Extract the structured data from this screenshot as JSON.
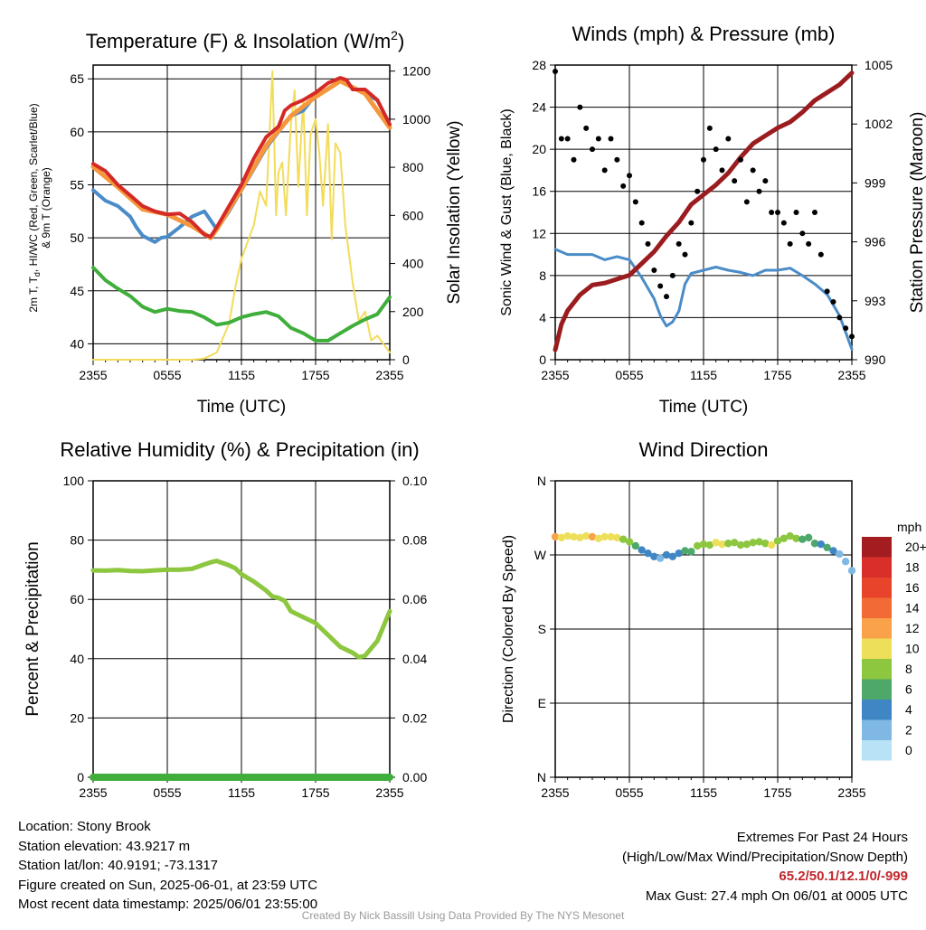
{
  "chart_data": [
    {
      "type": "line",
      "title": "Temperature (F) & Insolation (W/m",
      "title_superscript": "2",
      "title_close": ")",
      "xlabel": "Time (UTC)",
      "ylabel_lines": [
        "2m T, T",
        "d",
        ", HI/WC (Red, Green, Scarlet/Blue)",
        "& 9m T (Orange)"
      ],
      "ylabel_right": "Solar Insolation (Yellow)",
      "x_ticks": [
        "2355",
        "0555",
        "1155",
        "1755",
        "2355"
      ],
      "x_range": [
        0,
        24
      ],
      "ylim": [
        38.5,
        66.3
      ],
      "y_ticks": [
        40,
        45,
        50,
        55,
        60,
        65
      ],
      "ylim_right": [
        0,
        1225
      ],
      "y_ticks_right": [
        0,
        200,
        400,
        600,
        800,
        1000,
        1200
      ],
      "grid": true,
      "colors": {
        "temp": "#d42a27",
        "dew": "#3fae3b",
        "wind_chill": "#4a8cc8",
        "temp_9m": "#f5973a",
        "solar": "#f3dc5a"
      },
      "series": [
        {
          "key": "temp",
          "x": [
            0,
            1,
            2,
            3,
            4,
            5,
            6,
            7,
            8,
            9,
            9.5,
            10,
            11,
            12,
            13,
            14,
            15,
            15.5,
            16,
            17,
            18,
            19,
            20,
            20.5,
            21,
            22,
            23,
            24
          ],
          "values": [
            57,
            56.3,
            55,
            54,
            53,
            52.5,
            52.2,
            52.3,
            51.5,
            50.3,
            50.1,
            51,
            53,
            55,
            57.5,
            59.5,
            60.5,
            62,
            62.5,
            63,
            63.7,
            64.6,
            65.1,
            64.9,
            64,
            64,
            63,
            60.7
          ]
        },
        {
          "key": "temp_9m",
          "x": [
            0,
            2,
            4,
            6,
            8,
            9.5,
            10,
            12,
            14,
            16,
            18,
            20,
            22,
            24
          ],
          "values": [
            56.7,
            54.8,
            52.7,
            52.2,
            51.1,
            50,
            50.8,
            54.6,
            58.7,
            61.5,
            63.3,
            64.8,
            63.6,
            60.4
          ]
        },
        {
          "key": "wind_chill",
          "x": [
            0,
            1,
            2,
            3,
            3.5,
            4,
            5,
            5.5,
            6,
            7,
            8,
            9,
            10,
            11,
            12,
            13,
            14,
            15,
            16,
            17,
            18,
            19,
            20,
            21,
            22,
            23,
            24
          ],
          "values": [
            54.5,
            53.5,
            53,
            52,
            51,
            50.2,
            49.6,
            50,
            50.1,
            51,
            52,
            52.5,
            50.8,
            52.5,
            54.5,
            56.5,
            58.5,
            60,
            61.5,
            62,
            63.5,
            64,
            64.8,
            64.2,
            63.6,
            63,
            60.7
          ]
        },
        {
          "key": "dew",
          "x": [
            0,
            1,
            2,
            3,
            4,
            5,
            6,
            7,
            8,
            9,
            10,
            11,
            12,
            13,
            14,
            15,
            16,
            17,
            18,
            19,
            20,
            21,
            22,
            23,
            24
          ],
          "values": [
            47.2,
            46,
            45.2,
            44.5,
            43.5,
            43,
            43.3,
            43.1,
            43,
            42.5,
            41.8,
            42,
            42.5,
            42.8,
            43,
            42.6,
            41.5,
            41,
            40.3,
            40.3,
            41,
            41.7,
            42.3,
            42.8,
            44.4
          ]
        },
        {
          "key": "solar",
          "x": [
            0,
            4,
            8,
            9,
            10,
            11,
            11.5,
            12,
            13,
            13.5,
            14,
            14.5,
            14.8,
            15,
            15.3,
            15.6,
            16,
            16.3,
            16.6,
            17,
            17.3,
            17.6,
            18,
            18.3,
            18.6,
            19,
            19.3,
            19.6,
            20,
            20.4,
            21,
            21.5,
            22,
            22.5,
            23,
            24
          ],
          "values": [
            0,
            0,
            0,
            5,
            30,
            150,
            300,
            420,
            560,
            700,
            640,
            1200,
            600,
            780,
            820,
            600,
            980,
            1120,
            720,
            1080,
            600,
            940,
            1000,
            860,
            640,
            980,
            500,
            900,
            860,
            560,
            320,
            160,
            200,
            80,
            100,
            30
          ]
        }
      ]
    },
    {
      "type": "scatter",
      "title": "Winds (mph) & Pressure (mb)",
      "xlabel": "Time (UTC)",
      "ylabel": "Sonic Wind & Gust (Blue, Black)",
      "ylabel_right": "Station Pressure (Maroon)",
      "x_ticks": [
        "2355",
        "0555",
        "1155",
        "1755",
        "2355"
      ],
      "x_range": [
        0,
        24
      ],
      "ylim": [
        0,
        28
      ],
      "y_ticks": [
        0,
        4,
        8,
        12,
        16,
        20,
        24,
        28
      ],
      "ylim_right": [
        990,
        1005
      ],
      "y_ticks_right": [
        990,
        993,
        996,
        999,
        1002,
        1005
      ],
      "grid": true,
      "colors": {
        "wind": "#4a8cc8",
        "gust": "#000000",
        "pressure": "#9b1c1f"
      },
      "series": [
        {
          "key": "wind",
          "x": [
            0,
            1,
            2,
            3,
            4,
            5,
            6,
            7,
            8,
            8.5,
            9,
            9.5,
            10,
            10.5,
            11,
            12,
            13,
            14,
            15,
            16,
            17,
            18,
            19,
            20,
            21,
            22,
            23,
            23.5,
            24
          ],
          "values": [
            10.5,
            10,
            10,
            10,
            9.5,
            9.8,
            9.5,
            7.8,
            5.8,
            4.2,
            3.2,
            3.6,
            4.6,
            7.2,
            8.2,
            8.5,
            8.8,
            8.5,
            8.3,
            8,
            8.5,
            8.5,
            8.7,
            8,
            7.2,
            6.2,
            4.2,
            2.6,
            1
          ]
        },
        {
          "key": "gust",
          "x": [
            0,
            0.5,
            1,
            1.5,
            2,
            2.5,
            3,
            3.5,
            4,
            4.5,
            5,
            5.5,
            6,
            6.5,
            7,
            7.5,
            8,
            8.5,
            9,
            9.5,
            10,
            10.5,
            11,
            11.5,
            12,
            12.5,
            13,
            13.5,
            14,
            14.5,
            15,
            15.5,
            16,
            16.5,
            17,
            17.5,
            18,
            18.5,
            19,
            19.5,
            20,
            20.5,
            21,
            21.5,
            22,
            22.5,
            23,
            23.5,
            24
          ],
          "values": [
            27.4,
            21,
            21,
            19,
            24,
            22,
            20,
            21,
            18,
            21,
            19,
            16.5,
            17.5,
            15,
            13,
            11,
            8.5,
            7,
            6,
            8,
            11,
            10,
            13,
            16,
            19,
            22,
            20,
            18,
            21,
            17,
            19,
            15,
            18,
            16,
            17,
            14,
            14,
            13,
            11,
            14,
            12,
            11,
            14,
            10,
            6.5,
            5.5,
            4,
            3,
            2.2
          ]
        },
        {
          "key": "pressure",
          "x": [
            0,
            0.5,
            1,
            2,
            3,
            4,
            5,
            6,
            7,
            8,
            9,
            10,
            11,
            12,
            13,
            14,
            15,
            16,
            17,
            18,
            19,
            20,
            21,
            22,
            23,
            24
          ],
          "values": [
            990.5,
            991.8,
            992.5,
            993.3,
            993.8,
            993.9,
            994.1,
            994.3,
            994.9,
            995.5,
            996.3,
            997,
            997.9,
            998.4,
            998.9,
            999.5,
            1000.3,
            1001,
            1001.4,
            1001.8,
            1002.1,
            1002.6,
            1003.2,
            1003.6,
            1004,
            1004.6
          ]
        }
      ]
    },
    {
      "type": "line",
      "title": "Relative Humidity (%) & Precipitation (in)",
      "ylabel": "Percent & Precipitation",
      "x_ticks": [
        "2355",
        "0555",
        "1155",
        "1755",
        "2355"
      ],
      "x_range": [
        0,
        24
      ],
      "ylim": [
        0,
        100
      ],
      "y_ticks": [
        0,
        20,
        40,
        60,
        80,
        100
      ],
      "ylim_right": [
        0,
        0.1
      ],
      "y_ticks_right": [
        "0.00",
        "0.02",
        "0.04",
        "0.06",
        "0.08",
        "0.10"
      ],
      "grid": true,
      "colors": {
        "rh": "#8dc63f",
        "precip": "#3fae3b"
      },
      "series": [
        {
          "key": "rh",
          "x": [
            0,
            1,
            2,
            3,
            4,
            5,
            6,
            7,
            8,
            9,
            9.5,
            10,
            11,
            11.5,
            12,
            13,
            14,
            14.5,
            15,
            15.5,
            16,
            17,
            18,
            19,
            20,
            21,
            21.5,
            22,
            23,
            24
          ],
          "values": [
            69.8,
            69.7,
            69.9,
            69.6,
            69.5,
            69.8,
            70,
            70,
            70.3,
            71.8,
            72.5,
            73,
            71.5,
            70.5,
            68.5,
            66,
            63,
            61,
            60.5,
            59.5,
            56,
            54,
            52,
            48,
            44,
            42,
            40.5,
            41,
            46,
            56
          ]
        },
        {
          "key": "precip",
          "x": [
            0,
            24
          ],
          "values": [
            0,
            0
          ]
        }
      ]
    },
    {
      "type": "scatter",
      "title": "Wind Direction",
      "ylabel": "Direction (Colored By Speed)",
      "x_ticks": [
        "2355",
        "0555",
        "1155",
        "1755",
        "2355"
      ],
      "x_range": [
        0,
        24
      ],
      "y_ticks": [
        "N",
        "W",
        "S",
        "E",
        "N"
      ],
      "y_tick_degrees": [
        360,
        270,
        180,
        90,
        0
      ],
      "grid": true,
      "legend_title": "mph",
      "legend_labels": [
        "20+",
        "18",
        "16",
        "14",
        "12",
        "10",
        "8",
        "6",
        "4",
        "2",
        "0"
      ],
      "legend_colors": [
        "#a31d20",
        "#d82f2a",
        "#e8442c",
        "#f26b35",
        "#f9a24a",
        "#eedf5a",
        "#8dc63f",
        "#4ea86a",
        "#3f86c4",
        "#7fb8e3",
        "#b8e2f5"
      ],
      "series": [
        {
          "key": "direction",
          "x": [
            0,
            0.5,
            1,
            1.5,
            2,
            2.5,
            3,
            3.5,
            4,
            4.5,
            5,
            5.5,
            6,
            6.5,
            7,
            7.5,
            8,
            8.5,
            9,
            9.5,
            10,
            10.5,
            11,
            11.5,
            12,
            12.5,
            13,
            13.5,
            14,
            14.5,
            15,
            15.5,
            16,
            16.5,
            17,
            17.5,
            18,
            18.5,
            19,
            19.5,
            20,
            20.5,
            21,
            21.5,
            22,
            22.5,
            23,
            23.5,
            24
          ],
          "values": [
            292,
            291,
            293,
            292,
            291,
            293,
            292,
            290,
            292,
            292,
            291,
            289,
            286,
            281,
            276,
            272,
            268,
            266,
            270,
            268,
            272,
            275,
            274,
            281,
            283,
            282,
            285,
            283,
            284,
            285,
            282,
            283,
            285,
            286,
            284,
            282,
            287,
            290,
            293,
            290,
            289,
            291,
            284,
            283,
            279,
            275,
            271,
            262,
            251
          ],
          "speeds": [
            11,
            10,
            10,
            10,
            10,
            10,
            12,
            10,
            10,
            9,
            10,
            8,
            7,
            5,
            4,
            3,
            3,
            2,
            3,
            3,
            4,
            5,
            6,
            8,
            8,
            8,
            9,
            9,
            8,
            7,
            8,
            8,
            7,
            8,
            8,
            9,
            7,
            7,
            8,
            7,
            6,
            6,
            5,
            3,
            5,
            3,
            2,
            2,
            2
          ]
        }
      ]
    }
  ],
  "footer": {
    "location": "Location: Stony Brook",
    "elevation": "Station elevation: 43.9217 m",
    "latlon": "Station lat/lon: 40.9191; -73.1317",
    "created": "Figure created on Sun, 2025-06-01, at 23:59 UTC",
    "recent": "Most recent data timestamp: 2025/06/01 23:55:00",
    "extremes_title": "Extremes For Past 24 Hours",
    "extremes_subtitle": "(High/Low/Max Wind/Precipitation/Snow Depth)",
    "extremes_values": "65.2/50.1/12.1/0/-999",
    "max_gust": "Max Gust: 27.4 mph On 06/01 at 0005 UTC",
    "credit": "Created By Nick Bassill Using Data Provided By The NYS Mesonet"
  }
}
